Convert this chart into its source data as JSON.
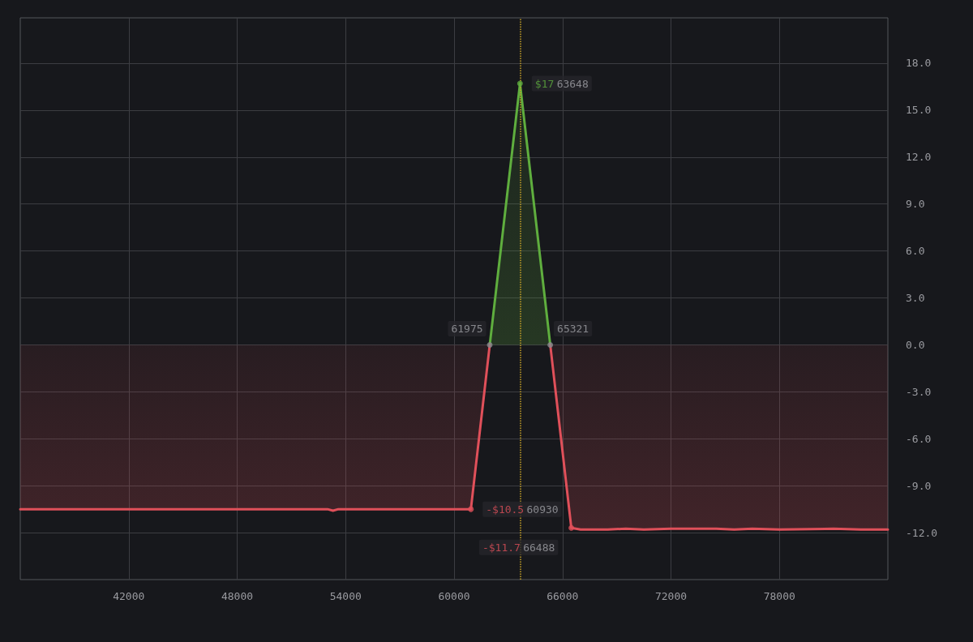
{
  "chart_data": {
    "type": "area",
    "series": [
      {
        "color": "#5fae3e",
        "x": [
          61975,
          63648,
          65321
        ],
        "values": [
          0,
          16.7,
          0
        ]
      },
      {
        "color": "#e0505a",
        "x": [
          36000,
          45000,
          53000,
          53300,
          53600,
          60930,
          61975,
          63648,
          65321,
          66488,
          67000,
          68500,
          69500,
          70500,
          72000,
          74500,
          75500,
          76500,
          78000,
          81000,
          82500,
          84000
        ],
        "values": [
          -10.5,
          -10.5,
          -10.5,
          -10.6,
          -10.5,
          -10.5,
          0,
          null,
          0,
          -11.7,
          -11.8,
          -11.8,
          -11.75,
          -11.8,
          -11.75,
          -11.75,
          -11.8,
          -11.75,
          -11.8,
          -11.75,
          -11.8,
          -11.8
        ]
      }
    ],
    "xlim": [
      36000,
      84000
    ],
    "xticks": [
      42000,
      48000,
      54000,
      60000,
      66000,
      72000,
      78000
    ],
    "ylim": [
      -15,
      20.9
    ],
    "yticks": [
      {
        "value": -12,
        "label": "-12.0"
      },
      {
        "value": -9,
        "label": "-9.0"
      },
      {
        "value": -6,
        "label": "-6.0"
      },
      {
        "value": -3,
        "label": "-3.0"
      },
      {
        "value": 0,
        "label": "0.0"
      },
      {
        "value": 3,
        "label": "3.0"
      },
      {
        "value": 6,
        "label": "6.0"
      },
      {
        "value": 9,
        "label": "9.0"
      },
      {
        "value": 12,
        "label": "12.0"
      },
      {
        "value": 15,
        "label": "15.0"
      },
      {
        "value": 18,
        "label": "18.0"
      }
    ],
    "ref_lines": [
      {
        "axis": "x",
        "value": 63648,
        "color": "#c9a227",
        "line_style": "dotted"
      }
    ],
    "annotations": [
      {
        "text": "$17 63648",
        "x": 63648,
        "y": 16.7
      },
      {
        "text": "61975",
        "x": 61975,
        "y": 0
      },
      {
        "text": "65321",
        "x": 65321,
        "y": 0
      },
      {
        "text": "-$10.5 60930",
        "x": 60930,
        "y": -10.5
      },
      {
        "text": "-$11.7 66488",
        "x": 66488,
        "y": -11.7
      }
    ],
    "grid": true,
    "marker": "none",
    "line_style": "solid"
  }
}
